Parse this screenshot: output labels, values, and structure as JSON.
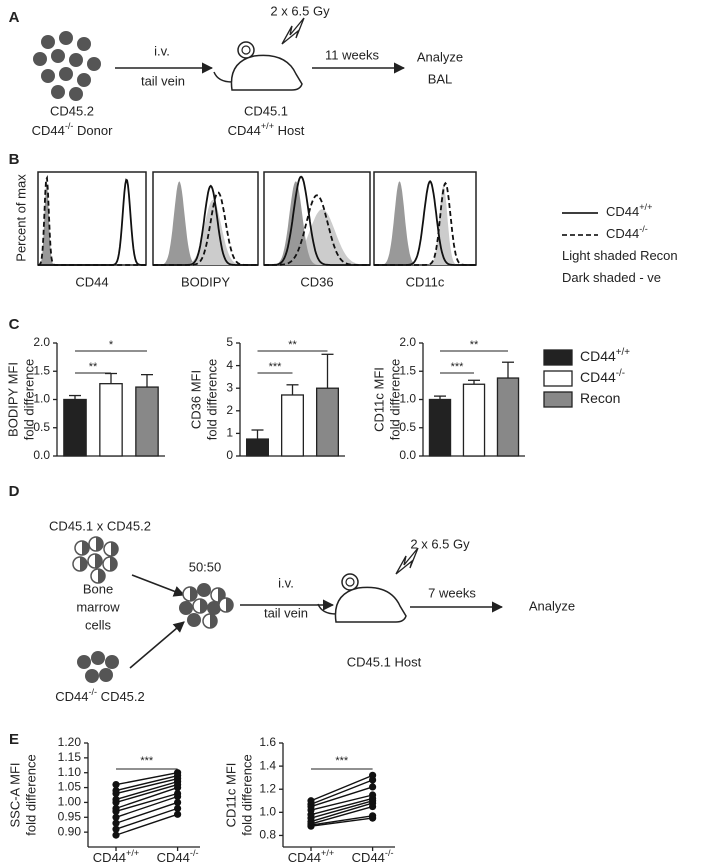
{
  "panel_a": {
    "label": "A",
    "donor_line1": "CD45.2",
    "donor_line2": {
      "base": "CD44",
      "sup": "-/-",
      "rest": " Donor"
    },
    "route_top": "i.v.",
    "route_bottom": "tail vein",
    "irradiation": "2 x 6.5 Gy",
    "host_line1": "CD45.1",
    "host_line2": {
      "base": "CD44",
      "sup": "+/+",
      "rest": " Host"
    },
    "interval": "11 weeks",
    "outcome_line1": "Analyze",
    "outcome_line2": "BAL"
  },
  "panel_b": {
    "label": "B",
    "y_label": "Percent of max",
    "x_labels": [
      "CD44",
      "BODIPY",
      "CD36",
      "CD11c"
    ],
    "legend": [
      {
        "base": "CD44",
        "sup": "+/+",
        "style": "solid"
      },
      {
        "base": "CD44",
        "sup": "-/-",
        "style": "dashed"
      },
      {
        "text": "Light shaded Recon"
      },
      {
        "text": "Dark shaded - ve"
      }
    ]
  },
  "panel_c": {
    "label": "C",
    "legend": [
      {
        "base": "CD44",
        "sup": "+/+",
        "color": "#222222"
      },
      {
        "base": "CD44",
        "sup": "-/-",
        "color": "#ffffff"
      },
      {
        "text": "Recon",
        "color": "#888888"
      }
    ]
  },
  "panel_d": {
    "label": "D",
    "donor_top": "CD45.1 x CD45.2",
    "cells": [
      "Bone",
      "marrow",
      "cells"
    ],
    "mix": "50:50",
    "route_top": "i.v.",
    "route_bottom": "tail vein",
    "irradiation": "2 x 6.5 Gy",
    "interval": "7 weeks",
    "outcome": "Analyze",
    "host": "CD45.1 Host",
    "donor_bottom": {
      "base": "CD44",
      "sup": "-/-",
      "rest": " CD45.2"
    }
  },
  "panel_e": {
    "label": "E"
  },
  "chart_data": [
    {
      "type": "bar",
      "y_label": [
        "BODIPY MFI",
        "fold difference"
      ],
      "values": [
        1.0,
        1.28,
        1.22
      ],
      "errors": [
        0.07,
        0.18,
        0.22
      ],
      "ylim": [
        0,
        2
      ],
      "yticks": [
        {
          "value": 0,
          "label": "0.0"
        },
        {
          "value": 0.5,
          "label": "0.5"
        },
        {
          "value": 1,
          "label": "1.0"
        },
        {
          "value": 1.5,
          "label": "1.5"
        },
        {
          "value": 2,
          "label": "2.0"
        }
      ],
      "significance": [
        "**",
        "*"
      ]
    },
    {
      "type": "bar",
      "y_label": [
        "CD36 MFI",
        "fold difference"
      ],
      "values": [
        0.75,
        2.7,
        3.0
      ],
      "errors": [
        0.4,
        0.45,
        1.5
      ],
      "ylim": [
        0,
        5
      ],
      "yticks": [
        0,
        1,
        2,
        3,
        4,
        5
      ],
      "significance": [
        "***",
        "**"
      ]
    },
    {
      "type": "bar",
      "y_label": [
        "CD11c MFI",
        "fold difference"
      ],
      "values": [
        1.0,
        1.27,
        1.38
      ],
      "errors": [
        0.06,
        0.07,
        0.28
      ],
      "ylim": [
        0,
        2
      ],
      "yticks": [
        {
          "value": 0,
          "label": "0.0"
        },
        {
          "value": 0.5,
          "label": "0.5"
        },
        {
          "value": 1,
          "label": "1.0"
        },
        {
          "value": 1.5,
          "label": "1.5"
        },
        {
          "value": 2,
          "label": "2.0"
        }
      ],
      "significance": [
        "***",
        "**"
      ]
    },
    {
      "type": "line",
      "y_label": [
        "SSC-A MFI",
        "fold difference"
      ],
      "categories": [
        {
          "base": "CD44",
          "sup": "+/+"
        },
        {
          "base": "CD44",
          "sup": "-/-"
        }
      ],
      "ylim": [
        0.85,
        1.2
      ],
      "yticks": [
        {
          "value": 0.9,
          "label": "0.90"
        },
        0.95,
        {
          "value": 1,
          "label": "1.00"
        },
        1.05,
        {
          "value": 1.1,
          "label": "1.10"
        },
        1.15,
        {
          "value": 1.2,
          "label": "1.20"
        }
      ],
      "significance": "***",
      "series": [
        {
          "values": [
            0.89,
            0.96
          ]
        },
        {
          "values": [
            0.91,
            0.98
          ]
        },
        {
          "values": [
            0.93,
            1.0
          ]
        },
        {
          "values": [
            0.95,
            1.02
          ]
        },
        {
          "values": [
            0.97,
            1.03
          ]
        },
        {
          "values": [
            0.98,
            1.05
          ]
        },
        {
          "values": [
            1.0,
            1.06
          ]
        },
        {
          "values": [
            1.01,
            1.07
          ]
        },
        {
          "values": [
            1.03,
            1.08
          ]
        },
        {
          "values": [
            1.04,
            1.09
          ]
        },
        {
          "values": [
            1.06,
            1.1
          ]
        }
      ]
    },
    {
      "type": "line",
      "y_label": [
        "CD11c MFI",
        "fold difference"
      ],
      "categories": [
        {
          "base": "CD44",
          "sup": "+/+"
        },
        {
          "base": "CD44",
          "sup": "-/-"
        }
      ],
      "ylim": [
        0.7,
        1.6
      ],
      "yticks": [
        0.8,
        {
          "value": 1,
          "label": "1.0"
        },
        1.2,
        1.4,
        1.6
      ],
      "significance": "***",
      "series": [
        {
          "values": [
            0.88,
            0.95
          ]
        },
        {
          "values": [
            0.89,
            0.97
          ]
        },
        {
          "values": [
            0.9,
            1.05
          ]
        },
        {
          "values": [
            0.92,
            1.08
          ]
        },
        {
          "values": [
            0.95,
            1.1
          ]
        },
        {
          "values": [
            0.98,
            1.12
          ]
        },
        {
          "values": [
            1.02,
            1.15
          ]
        },
        {
          "values": [
            1.05,
            1.22
          ]
        },
        {
          "values": [
            1.07,
            1.28
          ]
        },
        {
          "values": [
            1.1,
            1.32
          ]
        }
      ]
    }
  ]
}
